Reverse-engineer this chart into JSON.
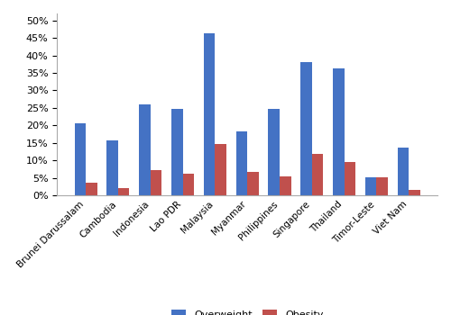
{
  "categories": [
    "Brunei Darussalam",
    "Cambodia",
    "Indonesia",
    "Lao PDR",
    "Malaysia",
    "Myanmar",
    "Philippines",
    "Singapore",
    "Thailand",
    "Timor-Leste",
    "Viet Nam"
  ],
  "overweight": [
    0.207,
    0.158,
    0.261,
    0.247,
    0.464,
    0.184,
    0.247,
    0.382,
    0.362,
    0.051,
    0.136
  ],
  "obesity": [
    0.035,
    0.02,
    0.072,
    0.061,
    0.148,
    0.068,
    0.054,
    0.118,
    0.095,
    0.051,
    0.016
  ],
  "overweight_color": "#4472C4",
  "obesity_color": "#C0504D",
  "ylim": [
    0,
    0.52
  ],
  "yticks": [
    0.0,
    0.05,
    0.1,
    0.15,
    0.2,
    0.25,
    0.3,
    0.35,
    0.4,
    0.45,
    0.5
  ],
  "legend_labels": [
    "Overweight",
    "Obesity"
  ],
  "bar_width": 0.35,
  "figsize": [
    5.0,
    3.5
  ],
  "dpi": 100,
  "background_color": "#ffffff",
  "border_color": "#aaaaaa"
}
